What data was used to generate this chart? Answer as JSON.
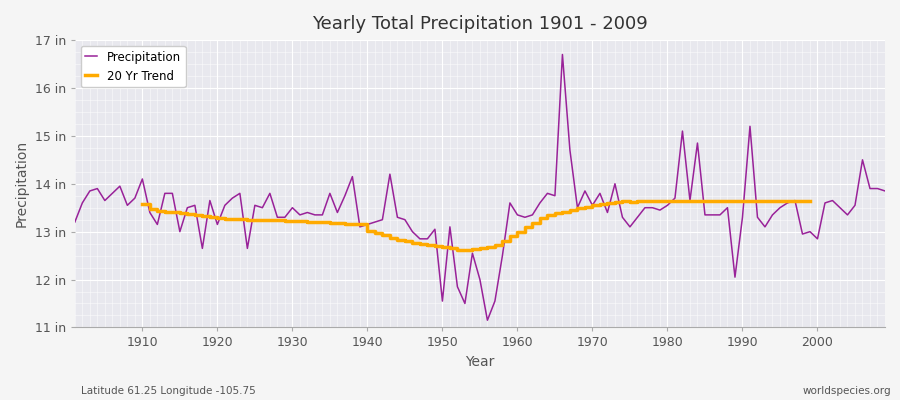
{
  "title": "Yearly Total Precipitation 1901 - 2009",
  "ylabel": "Precipitation",
  "xlabel": "Year",
  "footnote_left": "Latitude 61.25 Longitude -105.75",
  "footnote_right": "worldspecies.org",
  "legend_labels": [
    "Precipitation",
    "20 Yr Trend"
  ],
  "precip_color": "#992299",
  "trend_color": "#ffaa00",
  "bg_color": "#f0f0f0",
  "plot_bg_color": "#e8e8ee",
  "ylim": [
    11,
    17
  ],
  "yticks": [
    11,
    12,
    13,
    14,
    15,
    16,
    17
  ],
  "ytick_labels": [
    "11 in",
    "12 in",
    "13 in",
    "14 in",
    "15 in",
    "16 in",
    "17 in"
  ],
  "xlim": [
    1901,
    2009
  ],
  "xticks": [
    1910,
    1920,
    1930,
    1940,
    1950,
    1960,
    1970,
    1980,
    1990,
    2000
  ],
  "years": [
    1901,
    1902,
    1903,
    1904,
    1905,
    1906,
    1907,
    1908,
    1909,
    1910,
    1911,
    1912,
    1913,
    1914,
    1915,
    1916,
    1917,
    1918,
    1919,
    1920,
    1921,
    1922,
    1923,
    1924,
    1925,
    1926,
    1927,
    1928,
    1929,
    1930,
    1931,
    1932,
    1933,
    1934,
    1935,
    1936,
    1937,
    1938,
    1939,
    1940,
    1941,
    1942,
    1943,
    1944,
    1945,
    1946,
    1947,
    1948,
    1949,
    1950,
    1951,
    1952,
    1953,
    1954,
    1955,
    1956,
    1957,
    1958,
    1959,
    1960,
    1961,
    1962,
    1963,
    1964,
    1965,
    1966,
    1967,
    1968,
    1969,
    1970,
    1971,
    1972,
    1973,
    1974,
    1975,
    1976,
    1977,
    1978,
    1979,
    1980,
    1981,
    1982,
    1983,
    1984,
    1985,
    1986,
    1987,
    1988,
    1989,
    1990,
    1991,
    1992,
    1993,
    1994,
    1995,
    1996,
    1997,
    1998,
    1999,
    2000,
    2001,
    2002,
    2003,
    2004,
    2005,
    2006,
    2007,
    2008,
    2009
  ],
  "precip": [
    13.2,
    13.6,
    13.85,
    13.9,
    13.65,
    13.8,
    13.95,
    13.55,
    13.7,
    14.1,
    13.4,
    13.15,
    13.8,
    13.8,
    13.0,
    13.5,
    13.55,
    12.65,
    13.65,
    13.15,
    13.55,
    13.7,
    13.8,
    12.65,
    13.55,
    13.5,
    13.8,
    13.3,
    13.3,
    13.5,
    13.35,
    13.4,
    13.35,
    13.35,
    13.8,
    13.4,
    13.75,
    14.15,
    13.1,
    13.15,
    13.2,
    13.25,
    14.2,
    13.3,
    13.25,
    13.0,
    12.85,
    12.85,
    13.05,
    11.55,
    13.1,
    11.85,
    11.5,
    12.55,
    12.0,
    11.15,
    11.55,
    12.5,
    13.6,
    13.35,
    13.3,
    13.35,
    13.6,
    13.8,
    13.75,
    16.7,
    14.7,
    13.5,
    13.85,
    13.55,
    13.8,
    13.4,
    14.0,
    13.3,
    13.1,
    13.3,
    13.5,
    13.5,
    13.45,
    13.55,
    13.7,
    15.1,
    13.65,
    14.85,
    13.35,
    13.35,
    13.35,
    13.5,
    12.05,
    13.3,
    15.2,
    13.3,
    13.1,
    13.35,
    13.5,
    13.6,
    13.65,
    12.95,
    13.0,
    12.85,
    13.6,
    13.65,
    13.5,
    13.35,
    13.55,
    14.5,
    13.9,
    13.9,
    13.85
  ],
  "trend_years": [
    1910,
    1911,
    1912,
    1913,
    1914,
    1915,
    1916,
    1917,
    1918,
    1919,
    1920,
    1921,
    1922,
    1923,
    1924,
    1925,
    1926,
    1927,
    1928,
    1929,
    1930,
    1931,
    1932,
    1933,
    1934,
    1935,
    1936,
    1937,
    1938,
    1939,
    1940,
    1941,
    1942,
    1943,
    1944,
    1945,
    1946,
    1947,
    1948,
    1949,
    1950,
    1951,
    1952,
    1953,
    1954,
    1955,
    1956,
    1957,
    1958,
    1959,
    1960,
    1961,
    1962,
    1963,
    1964,
    1965,
    1966,
    1967,
    1968,
    1969,
    1970,
    1971,
    1972,
    1973,
    1974,
    1975,
    1976,
    1977,
    1978,
    1979,
    1980,
    1981,
    1982,
    1983,
    1984,
    1985,
    1986,
    1987,
    1988,
    1989,
    1990,
    1991,
    1992,
    1993,
    1994,
    1995,
    1996,
    1997,
    1998,
    1999
  ],
  "trend_vals": [
    13.58,
    13.48,
    13.43,
    13.41,
    13.4,
    13.38,
    13.36,
    13.34,
    13.32,
    13.3,
    13.28,
    13.27,
    13.26,
    13.26,
    13.25,
    13.25,
    13.24,
    13.24,
    13.24,
    13.23,
    13.22,
    13.22,
    13.21,
    13.21,
    13.2,
    13.19,
    13.18,
    13.17,
    13.16,
    13.15,
    13.02,
    12.98,
    12.92,
    12.87,
    12.83,
    12.8,
    12.77,
    12.75,
    12.73,
    12.7,
    12.68,
    12.65,
    12.62,
    12.62,
    12.63,
    12.65,
    12.68,
    12.73,
    12.8,
    12.9,
    13.0,
    13.1,
    13.18,
    13.28,
    13.35,
    13.39,
    13.42,
    13.46,
    13.49,
    13.52,
    13.55,
    13.57,
    13.6,
    13.62,
    13.63,
    13.62,
    13.63,
    13.63,
    13.63,
    13.63,
    13.63,
    13.63,
    13.63,
    13.63,
    13.63,
    13.63,
    13.63,
    13.63,
    13.63,
    13.63,
    13.63,
    13.63,
    13.63,
    13.63,
    13.63,
    13.63,
    13.63,
    13.63,
    13.63,
    13.63
  ]
}
